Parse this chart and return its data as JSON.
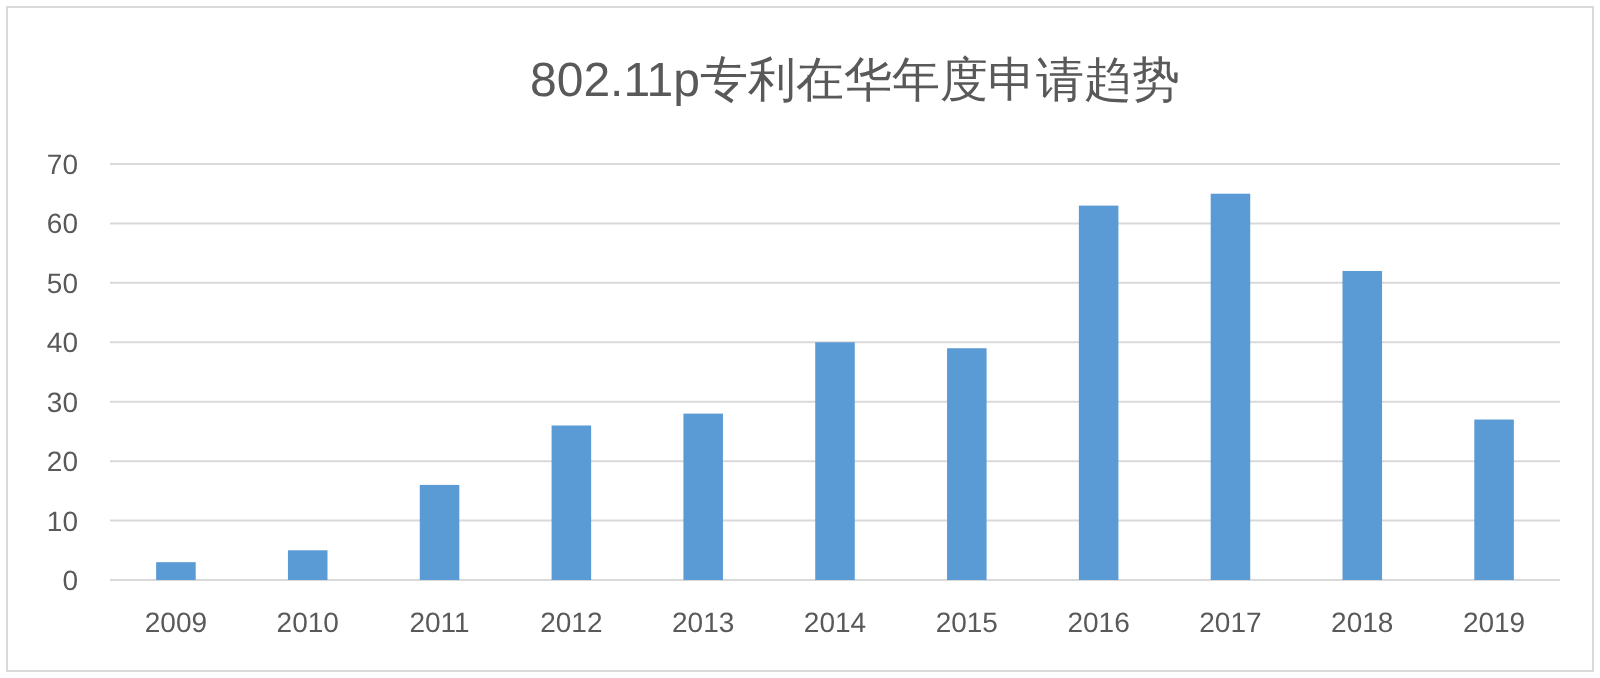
{
  "chart_data": {
    "type": "bar",
    "title": "802.11p专利在华年度申请趋势",
    "categories": [
      "2009",
      "2010",
      "2011",
      "2012",
      "2013",
      "2014",
      "2015",
      "2016",
      "2017",
      "2018",
      "2019"
    ],
    "values": [
      3,
      5,
      16,
      26,
      28,
      40,
      39,
      63,
      65,
      52,
      27
    ],
    "color": "#5b9bd5",
    "ylim": [
      0,
      70
    ],
    "yticks": [
      0,
      10,
      20,
      30,
      40,
      50,
      60,
      70
    ],
    "grid": "y"
  }
}
